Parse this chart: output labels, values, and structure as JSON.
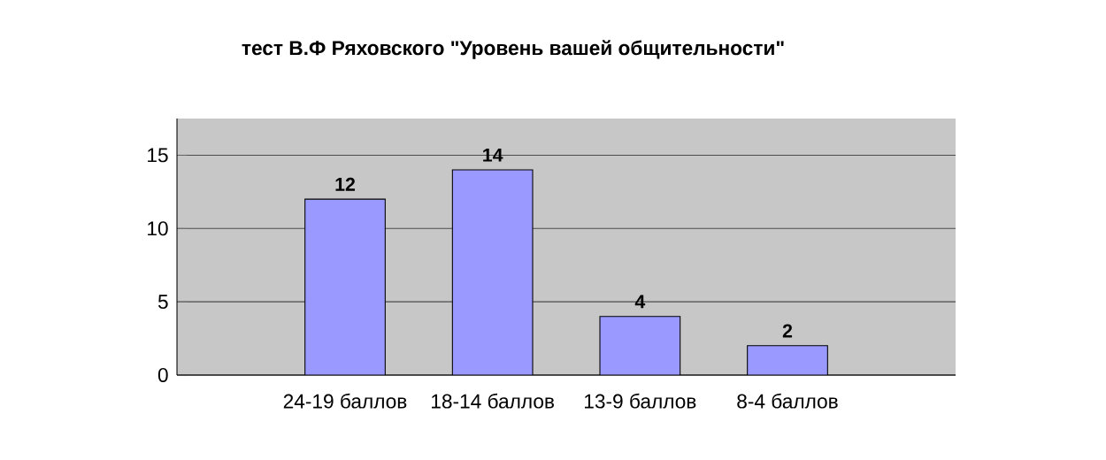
{
  "chart_data": {
    "type": "bar",
    "title": "тест В.Ф Ряховского \"Уровень вашей общительности\"",
    "categories": [
      "24-19 баллов",
      "18-14 баллов",
      "13-9 баллов",
      "8-4 баллов"
    ],
    "values": [
      12,
      14,
      4,
      2
    ],
    "color": "#9999ff",
    "ylim": [
      0,
      17.5
    ],
    "yticks": [
      0,
      5,
      10,
      15
    ],
    "grid": "y",
    "data_labels": true
  }
}
